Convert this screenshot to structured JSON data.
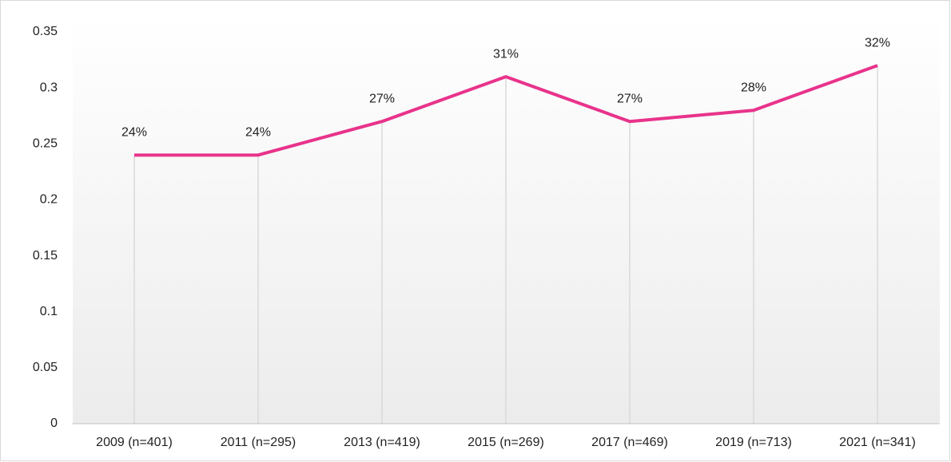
{
  "chart_data": {
    "type": "line",
    "categories": [
      "2009 (n=401)",
      "2011 (n=295)",
      "2013 (n=419)",
      "2015 (n=269)",
      "2017 (n=469)",
      "2019 (n=713)",
      "2021 (n=341)"
    ],
    "values": [
      0.24,
      0.24,
      0.27,
      0.31,
      0.27,
      0.28,
      0.32
    ],
    "value_labels": [
      "24%",
      "24%",
      "27%",
      "31%",
      "27%",
      "28%",
      "32%"
    ],
    "color": "#e8338b",
    "ylim": [
      0,
      0.35
    ],
    "yticks": [
      0,
      0.05,
      0.1,
      0.15,
      0.2,
      0.25,
      0.3,
      0.35
    ],
    "grid": false
  }
}
